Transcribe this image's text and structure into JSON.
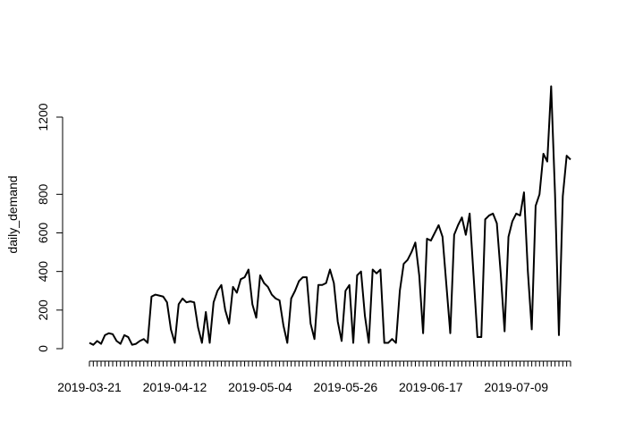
{
  "chart_data": {
    "type": "line",
    "ylabel": "daily_demand",
    "xlabel": "",
    "title": "",
    "ylim": [
      0,
      1360
    ],
    "yticks": [
      0,
      200,
      400,
      600,
      800,
      1200
    ],
    "x_start": "2019-03-21",
    "x_end": "2019-07-23",
    "x_tick_labels": [
      "2019-03-21",
      "2019-04-12",
      "2019-05-04",
      "2019-05-26",
      "2019-06-17",
      "2019-07-09"
    ],
    "grid": false,
    "legend": "none",
    "line_color": "#000000",
    "series": [
      {
        "values": [
          30,
          20,
          40,
          25,
          70,
          80,
          75,
          40,
          25,
          70,
          60,
          20,
          25,
          40,
          50,
          30,
          270,
          280,
          275,
          270,
          240,
          100,
          30,
          230,
          260,
          240,
          245,
          240,
          110,
          30,
          190,
          30,
          240,
          300,
          330,
          200,
          130,
          320,
          290,
          360,
          370,
          410,
          230,
          160,
          380,
          340,
          320,
          280,
          260,
          250,
          120,
          30,
          260,
          300,
          350,
          370,
          370,
          130,
          50,
          330,
          330,
          340,
          410,
          340,
          140,
          40,
          300,
          330,
          30,
          380,
          400,
          170,
          30,
          410,
          390,
          410,
          30,
          30,
          50,
          30,
          300,
          440,
          460,
          500,
          550,
          380,
          80,
          570,
          560,
          600,
          640,
          580,
          330,
          80,
          590,
          640,
          680,
          590,
          700,
          380,
          60,
          60,
          670,
          690,
          700,
          650,
          390,
          90,
          580,
          660,
          700,
          690,
          810,
          400,
          100,
          740,
          800,
          1010,
          970,
          1360,
          800,
          70,
          790,
          1000,
          980
        ]
      }
    ]
  }
}
